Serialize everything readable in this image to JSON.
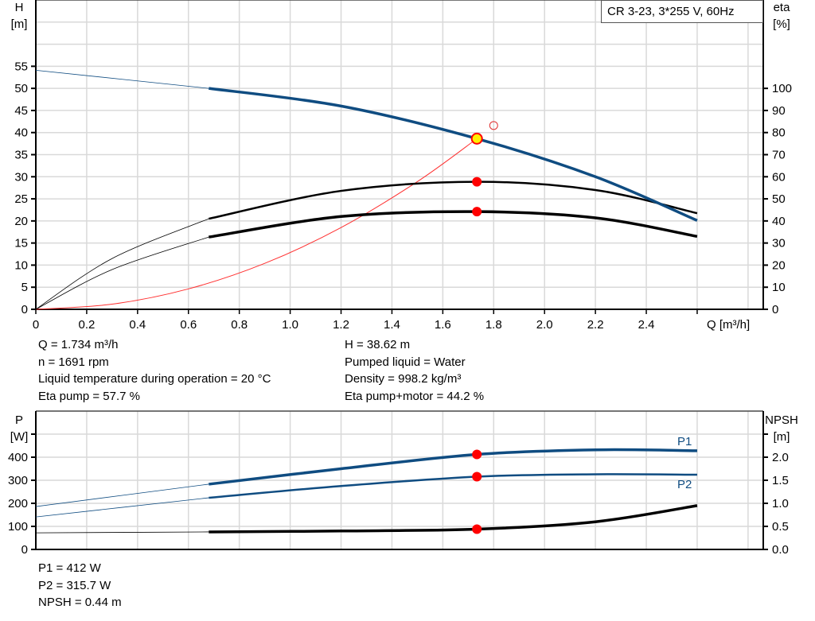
{
  "legend_box": "CR 3-23, 3*255 V, 60Hz",
  "chart_data": [
    {
      "type": "line",
      "x_label": "Q [m³/h]",
      "x_ticks": [
        "0",
        "0.2",
        "0.4",
        "0.6",
        "0.8",
        "1.0",
        "1.2",
        "1.4",
        "1.6",
        "1.8",
        "2.0",
        "2.2",
        "2.4"
      ],
      "xlim": [
        0,
        2.8
      ],
      "y_left_label": [
        "H",
        "[m]"
      ],
      "y_left_ticks": [
        "0",
        "5",
        "10",
        "15",
        "20",
        "25",
        "30",
        "35",
        "40",
        "45",
        "50",
        "55"
      ],
      "y_left_lim": [
        0,
        70
      ],
      "y_right_label": [
        "eta",
        "[%]"
      ],
      "y_right_ticks": [
        "0",
        "10",
        "20",
        "30",
        "40",
        "50",
        "60",
        "70",
        "80",
        "90",
        "100"
      ],
      "y_right_lim": [
        0,
        140
      ],
      "grid": true,
      "series": [
        {
          "key": "H",
          "axis": "left",
          "color": "#0f4c81",
          "x": [
            0,
            0.68,
            1.2,
            1.734,
            2.2,
            2.6
          ],
          "y": [
            54.1,
            50,
            46,
            38.62,
            30,
            20.1
          ]
        },
        {
          "key": "eta_pump",
          "axis": "right",
          "color": "#000000",
          "x": [
            0,
            0.3,
            0.68,
            1.2,
            1.734,
            2.2,
            2.6
          ],
          "y": [
            0,
            23,
            41,
            53.6,
            57.7,
            54,
            43.5
          ]
        },
        {
          "key": "eta_pump_motor",
          "axis": "right",
          "color": "#000000",
          "x": [
            0,
            0.3,
            0.68,
            1.2,
            1.734,
            2.2,
            2.6
          ],
          "y": [
            0,
            18,
            32.7,
            42,
            44.2,
            41.4,
            33
          ]
        },
        {
          "key": "system_curve",
          "axis": "left",
          "color": "#ff3030",
          "x": [
            0,
            0.3,
            0.6,
            0.9,
            1.2,
            1.5,
            1.734
          ],
          "y": [
            0,
            1.16,
            4.62,
            10.4,
            18.5,
            28.9,
            38.62
          ]
        }
      ],
      "duty_point": {
        "Q": 1.8,
        "H": 41.6
      },
      "operating_point": {
        "Q": 1.734,
        "H": 38.62,
        "eta_pump": 57.7,
        "eta_pump_motor": 44.2
      }
    },
    {
      "type": "line",
      "x_ticks": [],
      "xlim": [
        0,
        2.8
      ],
      "y_left_label": [
        "P",
        "[W]"
      ],
      "y_left_ticks": [
        "0",
        "100",
        "200",
        "300",
        "400"
      ],
      "y_left_lim": [
        0,
        600
      ],
      "y_right_label": [
        "NPSH",
        "[m]"
      ],
      "y_right_ticks": [
        "0.0",
        "0.5",
        "1.0",
        "1.5",
        "2.0"
      ],
      "y_right_lim": [
        0,
        3
      ],
      "grid": true,
      "series": [
        {
          "key": "P1",
          "name": "P1",
          "axis": "left",
          "color": "#0f4c81",
          "x": [
            0,
            0.68,
            1.2,
            1.734,
            2.2,
            2.6
          ],
          "y": [
            186,
            283,
            350,
            412,
            432,
            428
          ]
        },
        {
          "key": "P2",
          "name": "P2",
          "axis": "left",
          "color": "#0f4c81",
          "x": [
            0,
            0.68,
            1.2,
            1.734,
            2.2,
            2.6
          ],
          "y": [
            141,
            224,
            275,
            315.7,
            326,
            324
          ]
        },
        {
          "key": "NPSH",
          "axis": "right",
          "color": "#000000",
          "x": [
            0,
            0.68,
            1.2,
            1.734,
            2.2,
            2.6
          ],
          "y": [
            0.36,
            0.38,
            0.4,
            0.44,
            0.6,
            0.95
          ]
        }
      ],
      "operating_point": {
        "Q": 1.734,
        "P1": 412,
        "P2": 315.7,
        "NPSH": 0.44
      }
    }
  ],
  "info_top_left": [
    "Q = 1.734 m³/h",
    "n = 1691 rpm",
    "Liquid temperature during operation = 20 °C",
    "Eta pump = 57.7 %"
  ],
  "info_top_right": [
    "H = 38.62 m",
    "Pumped liquid = Water",
    "Density = 998.2 kg/m³",
    "Eta pump+motor = 44.2 %"
  ],
  "info_bottom": [
    "P1 = 412 W",
    "P2 = 315.7 W",
    "NPSH = 0.44 m"
  ]
}
